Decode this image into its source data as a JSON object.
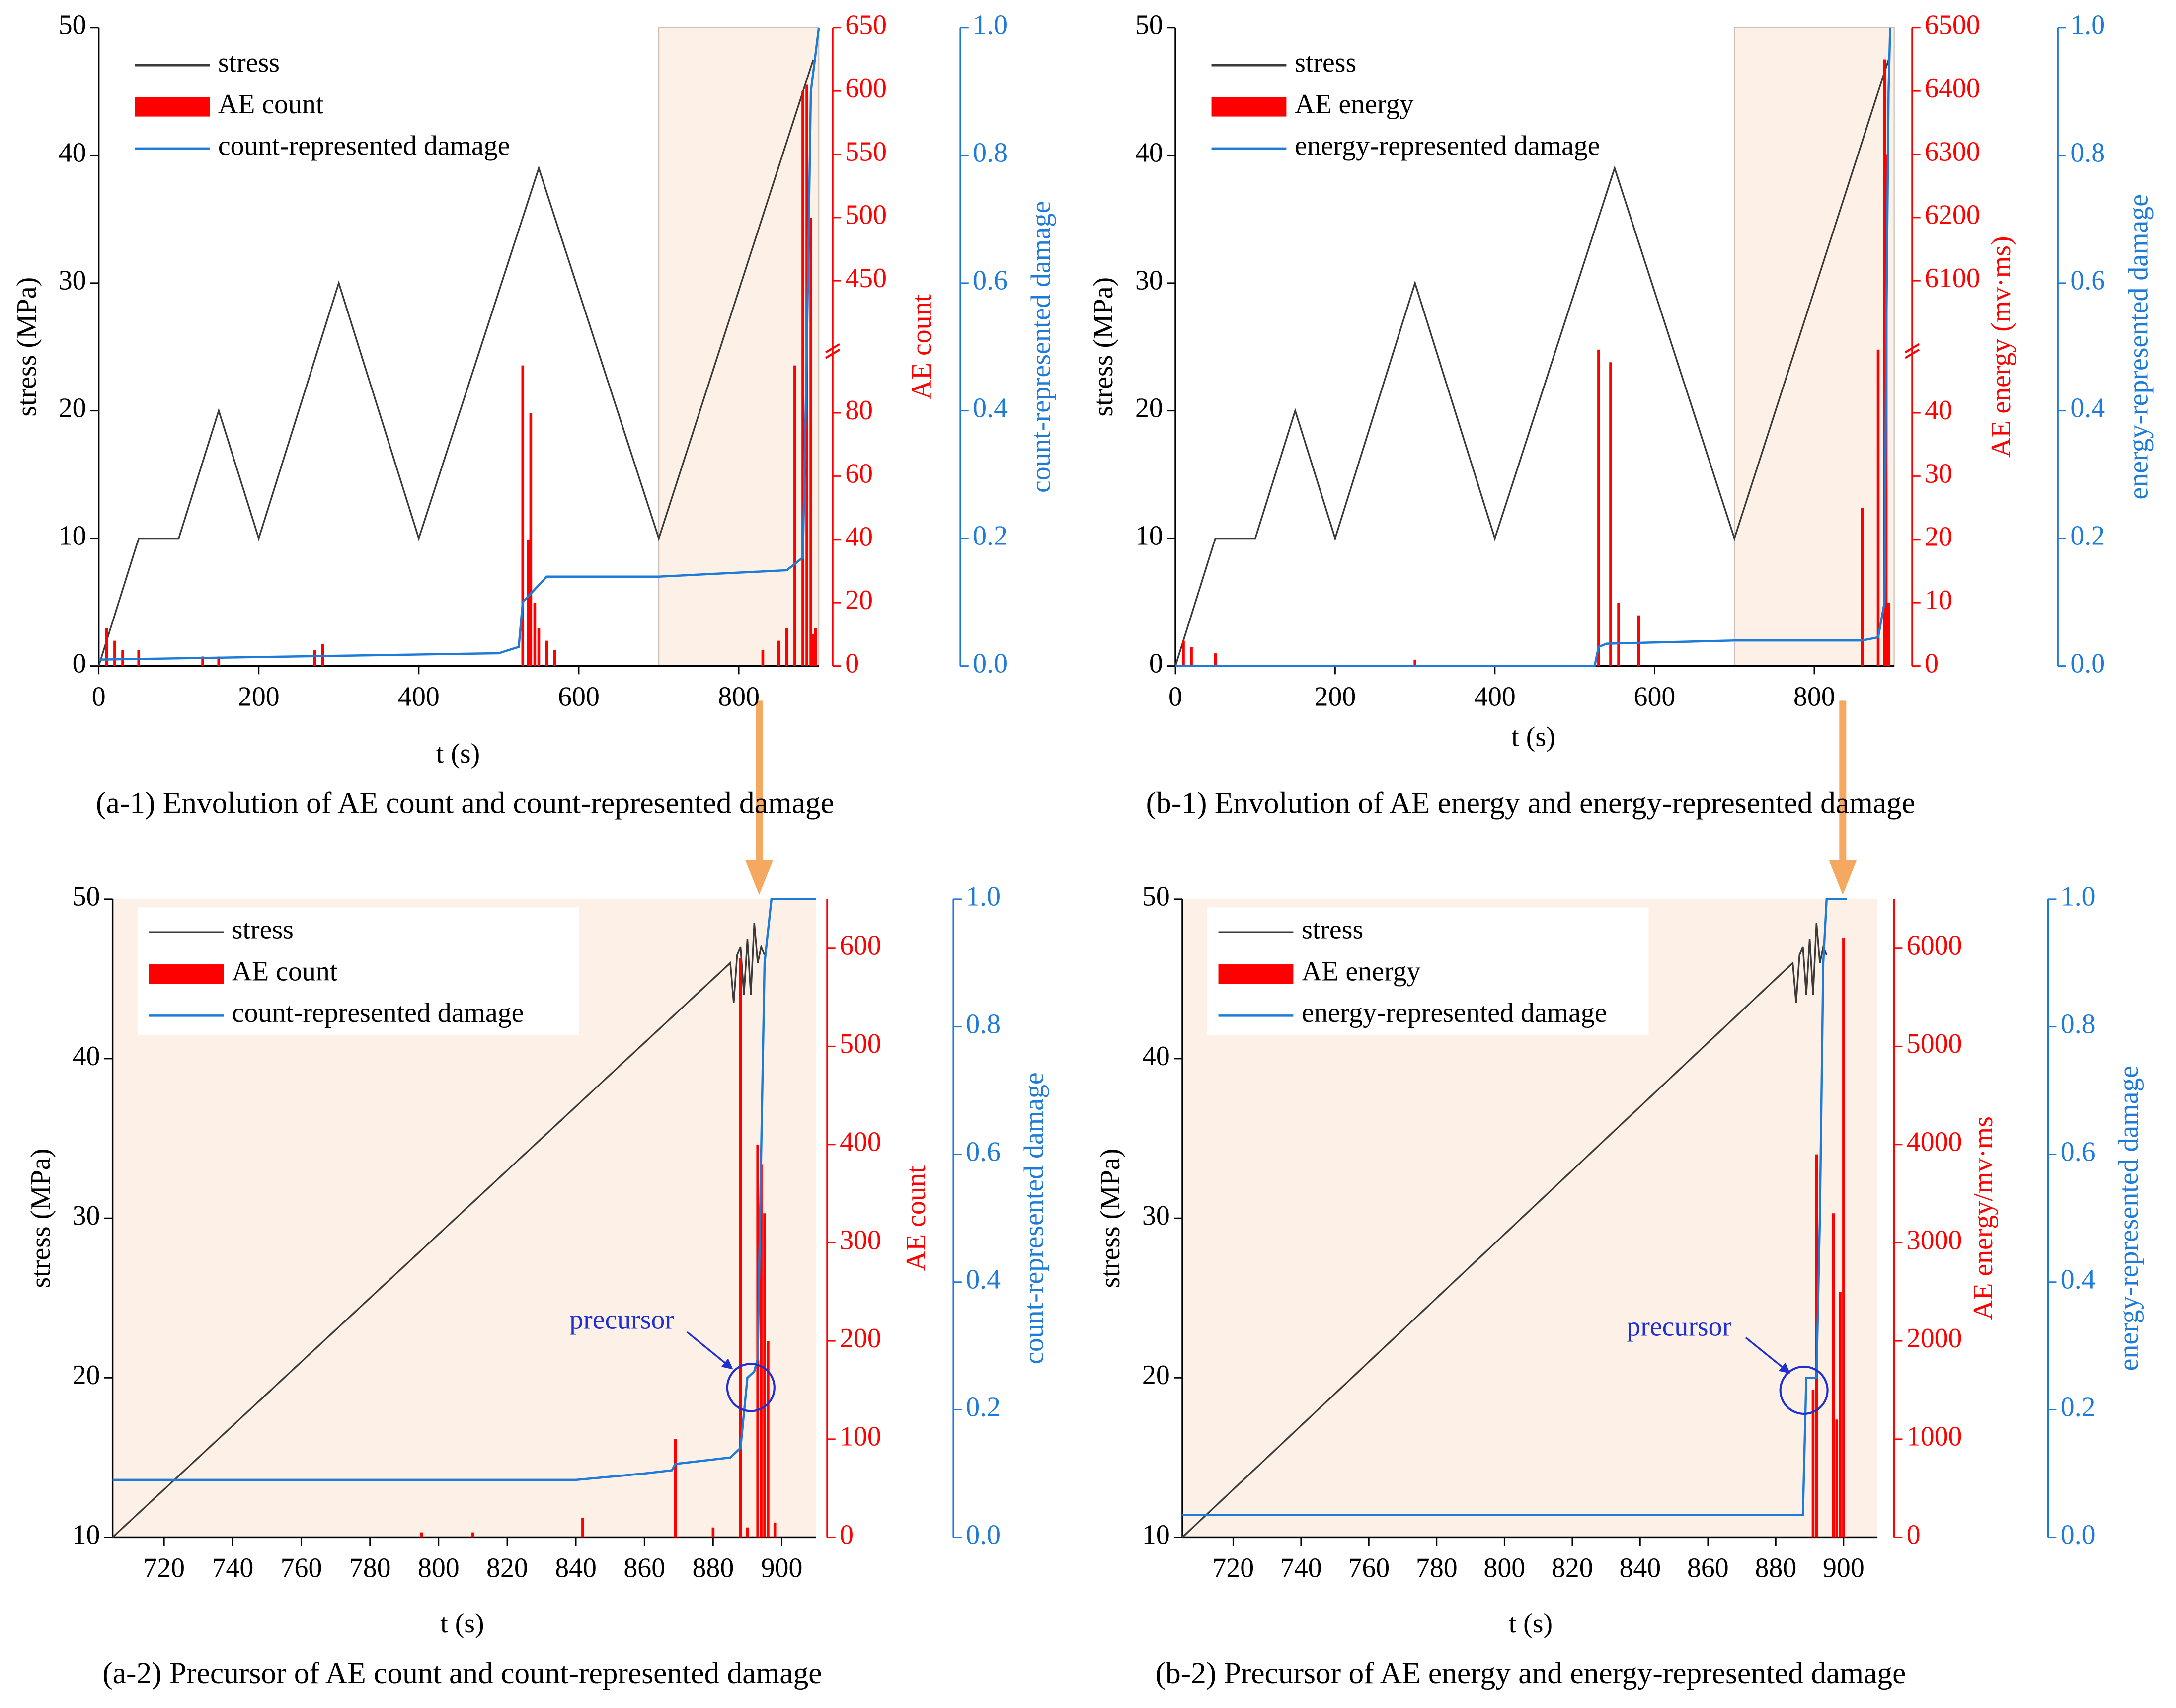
{
  "chart_data": [
    {
      "type": "line",
      "caption": "(a-1) Envolution of AE count and count-represented damage",
      "xlabel": "t (s)",
      "ylabel": "stress (MPa)",
      "y2label": "AE count",
      "y3label": "count-represented damage",
      "legend": "upper left",
      "shade_color": "#fdf1e7",
      "highlight_x": [
        700,
        900
      ],
      "xlim": [
        0,
        900
      ],
      "xticks": [
        0,
        200,
        400,
        600,
        800
      ],
      "ylim": [
        0,
        50
      ],
      "yticks": [
        0,
        10,
        20,
        30,
        40,
        50
      ],
      "y2lim": [
        0,
        650
      ],
      "y2break": [
        100,
        400
      ],
      "y2ticks": [
        0,
        20,
        40,
        60,
        80,
        450,
        500,
        550,
        600,
        650
      ],
      "y3lim": [
        0,
        1
      ],
      "y3ticks": [
        {
          "value": 0,
          "label": "0.0"
        },
        0.2,
        0.4,
        0.6,
        0.8,
        {
          "value": 1,
          "label": "1.0"
        }
      ],
      "series": [
        {
          "name": "stress",
          "color": "#3a3a3a",
          "axis": "y",
          "x": [
            0,
            50,
            100,
            150,
            200,
            300,
            400,
            550,
            700,
            893
          ],
          "values": [
            0,
            10,
            10,
            20,
            10,
            30,
            10,
            39,
            10,
            47.5
          ]
        },
        {
          "name": "AE count",
          "type": "bar",
          "color": "#ff0000",
          "axis": "y2",
          "x": [
            10,
            20,
            30,
            50,
            130,
            150,
            270,
            280,
            530,
            537,
            540,
            545,
            550,
            560,
            570,
            830,
            850,
            860,
            870,
            880,
            885,
            890,
            893,
            896
          ],
          "values": [
            12,
            8,
            5,
            5,
            3,
            3,
            5,
            7,
            95,
            40,
            80,
            20,
            12,
            8,
            5,
            5,
            8,
            12,
            95,
            600,
            605,
            500,
            10,
            12
          ]
        },
        {
          "name": "count-represented damage",
          "color": "#1e7bd8",
          "axis": "y3",
          "x": [
            0,
            500,
            525,
            530,
            560,
            700,
            860,
            880,
            885,
            890,
            895,
            900
          ],
          "values": [
            0.01,
            0.02,
            0.03,
            0.1,
            0.14,
            0.14,
            0.15,
            0.17,
            0.5,
            0.9,
            0.95,
            1.0
          ]
        }
      ]
    },
    {
      "type": "line",
      "caption": "(b-1) Envolution of AE energy and energy-represented damage",
      "xlabel": "t (s)",
      "ylabel": "stress (MPa)",
      "y2label": "AE energy (mv·ms)",
      "y3label": "energy-represented damage",
      "legend": "upper left",
      "shade_color": "#fdf1e7",
      "highlight_x": [
        700,
        900
      ],
      "xlim": [
        0,
        900
      ],
      "xticks": [
        0,
        200,
        400,
        600,
        800
      ],
      "ylim": [
        0,
        50
      ],
      "yticks": [
        0,
        10,
        20,
        30,
        40,
        50
      ],
      "y2lim": [
        0,
        6500
      ],
      "y2break": [
        50,
        6000
      ],
      "y2ticks": [
        0,
        10,
        20,
        30,
        40,
        6100,
        6200,
        6300,
        6400,
        6500
      ],
      "y3lim": [
        0,
        1
      ],
      "y3ticks": [
        {
          "value": 0,
          "label": "0.0"
        },
        0.2,
        0.4,
        0.6,
        0.8,
        {
          "value": 1,
          "label": "1.0"
        }
      ],
      "series": [
        {
          "name": "stress",
          "color": "#3a3a3a",
          "axis": "y",
          "x": [
            0,
            50,
            100,
            150,
            200,
            300,
            400,
            550,
            700,
            893
          ],
          "values": [
            0,
            10,
            10,
            20,
            10,
            30,
            10,
            39,
            10,
            47.5
          ]
        },
        {
          "name": "AE energy",
          "type": "bar",
          "color": "#ff0000",
          "axis": "y2",
          "x": [
            10,
            20,
            50,
            300,
            530,
            545,
            555,
            580,
            860,
            880,
            888,
            890,
            893
          ],
          "values": [
            4,
            3,
            2,
            1,
            50,
            48,
            10,
            8,
            25,
            50,
            6450,
            6300,
            10
          ]
        },
        {
          "name": "energy-represented damage",
          "color": "#1e7bd8",
          "axis": "y3",
          "x": [
            0,
            525,
            530,
            540,
            700,
            860,
            880,
            888,
            890,
            893,
            895
          ],
          "values": [
            0,
            0,
            0.03,
            0.035,
            0.04,
            0.04,
            0.045,
            0.1,
            0.5,
            0.9,
            1.0
          ]
        }
      ]
    },
    {
      "type": "line",
      "caption": "(a-2) Precursor of AE count and count-represented damage",
      "xlabel": "t (s)",
      "ylabel": "stress (MPa)",
      "y2label": "AE count",
      "y3label": "count-represented damage",
      "legend": "upper left",
      "shade_color": "#fdf1e7",
      "annotation": "precursor",
      "xlim": [
        705,
        910
      ],
      "xticks": [
        720,
        740,
        760,
        780,
        800,
        820,
        840,
        860,
        880,
        900
      ],
      "ylim": [
        10,
        50
      ],
      "yticks": [
        10,
        20,
        30,
        40,
        50
      ],
      "y2lim": [
        0,
        650
      ],
      "y2ticks": [
        0,
        100,
        200,
        300,
        400,
        500,
        600
      ],
      "y3lim": [
        0,
        1
      ],
      "y3ticks": [
        {
          "value": 0,
          "label": "0.0"
        },
        0.2,
        0.4,
        0.6,
        0.8,
        {
          "value": 1,
          "label": "1.0"
        }
      ],
      "series": [
        {
          "name": "stress",
          "color": "#3a3a3a",
          "axis": "y",
          "x": [
            705,
            885,
            886,
            887,
            888,
            889,
            890,
            891,
            892,
            893,
            894,
            895
          ],
          "values": [
            10,
            46,
            43.5,
            46.5,
            47,
            44,
            47.5,
            44,
            48.5,
            46,
            47,
            46.5
          ]
        },
        {
          "name": "AE count",
          "type": "bar",
          "color": "#ff0000",
          "axis": "y2",
          "x": [
            795,
            810,
            842,
            869,
            880,
            888,
            890,
            893,
            894,
            895,
            896,
            898
          ],
          "values": [
            5,
            5,
            20,
            100,
            10,
            590,
            10,
            400,
            380,
            330,
            200,
            15
          ]
        },
        {
          "name": "count-represented damage",
          "color": "#1e7bd8",
          "axis": "y3",
          "x": [
            705,
            840,
            860,
            868,
            869,
            885,
            888,
            890,
            892,
            893,
            894,
            895,
            897,
            910
          ],
          "values": [
            0.09,
            0.09,
            0.1,
            0.105,
            0.115,
            0.125,
            0.14,
            0.25,
            0.26,
            0.28,
            0.6,
            0.9,
            1.0,
            1.0
          ]
        }
      ]
    },
    {
      "type": "line",
      "caption": "(b-2) Precursor of AE energy and energy-represented damage",
      "xlabel": "t (s)",
      "ylabel": "stress (MPa)",
      "y2label": "AE energy/mv·ms",
      "y3label": "energy-represented damage",
      "legend": "upper left",
      "shade_color": "#fdf1e7",
      "annotation": "precursor",
      "xlim": [
        705,
        910
      ],
      "xticks": [
        720,
        740,
        760,
        780,
        800,
        820,
        840,
        860,
        880,
        900
      ],
      "ylim": [
        10,
        50
      ],
      "yticks": [
        10,
        20,
        30,
        40,
        50
      ],
      "y2lim": [
        0,
        6500
      ],
      "y2ticks": [
        0,
        1000,
        2000,
        3000,
        4000,
        5000,
        6000
      ],
      "y3lim": [
        0,
        1
      ],
      "y3ticks": [
        {
          "value": 0,
          "label": "0.0"
        },
        0.2,
        0.4,
        0.6,
        0.8,
        {
          "value": 1,
          "label": "1.0"
        }
      ],
      "series": [
        {
          "name": "stress",
          "color": "#3a3a3a",
          "axis": "y",
          "x": [
            705,
            885,
            886,
            887,
            888,
            889,
            890,
            891,
            892,
            893,
            894,
            895
          ],
          "values": [
            10,
            46,
            43.5,
            46.5,
            47,
            44,
            47.5,
            44,
            48.5,
            46,
            47,
            46.5
          ]
        },
        {
          "name": "AE energy",
          "type": "bar",
          "color": "#ff0000",
          "axis": "y2",
          "x": [
            891,
            892,
            897,
            898,
            899,
            900
          ],
          "values": [
            1500,
            3900,
            3300,
            1200,
            2500,
            6100
          ]
        },
        {
          "name": "energy-represented damage",
          "color": "#1e7bd8",
          "axis": "y3",
          "x": [
            705,
            888,
            889,
            892,
            893,
            894,
            895,
            901
          ],
          "values": [
            0.035,
            0.035,
            0.25,
            0.25,
            0.5,
            0.9,
            1.0,
            1.0
          ]
        }
      ]
    }
  ]
}
